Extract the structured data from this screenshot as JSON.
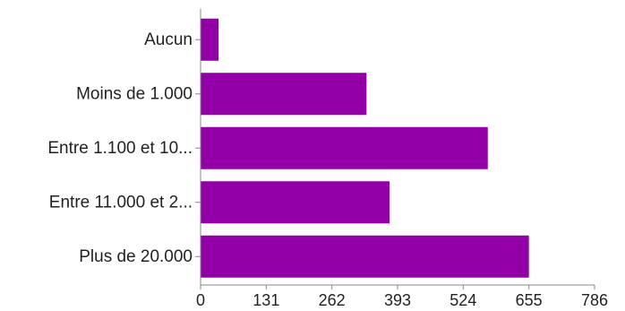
{
  "chart_data": {
    "type": "bar",
    "orientation": "horizontal",
    "categories": [
      "Aucun",
      "Moins de 1.000",
      "Entre 1.100 et 10...",
      "Entre 11.000 et 2...",
      "Plus de 20.000"
    ],
    "values": [
      36,
      331,
      573,
      377,
      655
    ],
    "xticks": [
      "0",
      "131",
      "262",
      "393",
      "524",
      "655",
      "786"
    ],
    "xlim": [
      0,
      786
    ],
    "grid": false,
    "legend": "none",
    "bar_color": "#9400A8"
  }
}
